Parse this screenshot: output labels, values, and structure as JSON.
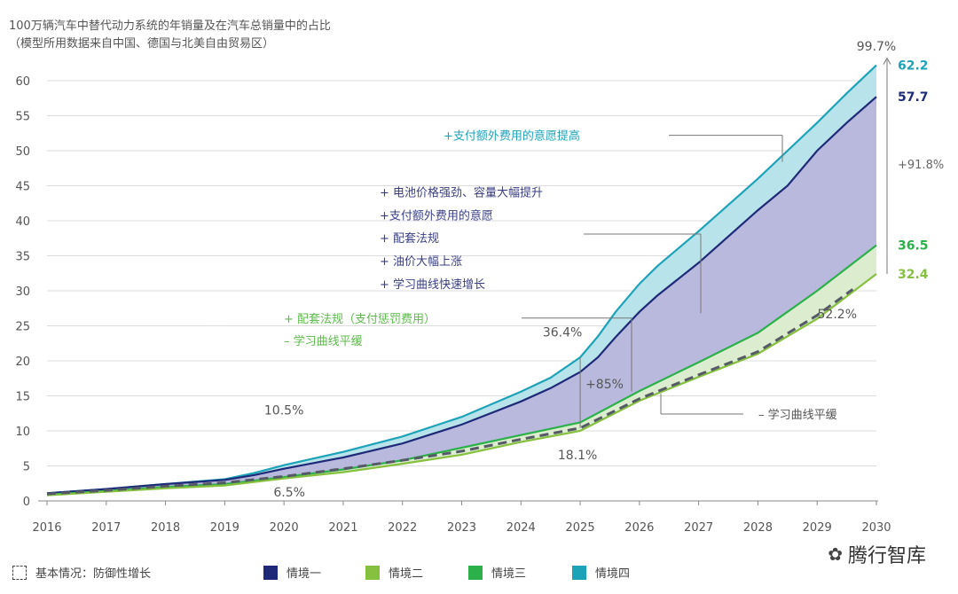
{
  "title_line1": "100万辆汽车中替代动力系统的年销量及在汽车总销量中的占比",
  "title_line2": "（模型所用数据来自中国、德国与北美自由贸易区）",
  "colors": {
    "s1": "#1e2a78",
    "s2": "#86c03f",
    "s3": "#2bb04a",
    "s4": "#1da3b8",
    "fill_purple": "#b9b9de",
    "fill_teal": "#b9e3ea",
    "fill_green": "#dbeccf",
    "base": "#555a66"
  },
  "chart_data": {
    "type": "line",
    "title": "100万辆汽车中替代动力系统的年销量及在汽车总销量中的占比",
    "x_ticks": [
      "2016",
      "2017",
      "2018",
      "2019",
      "2020",
      "2021",
      "2022",
      "2023",
      "2024",
      "2025",
      "2026",
      "2027",
      "2028",
      "2029",
      "2030"
    ],
    "y_ticks": [
      "0",
      "5",
      "10",
      "15",
      "20",
      "25",
      "30",
      "35",
      "40",
      "45",
      "50",
      "55",
      "60"
    ],
    "xlim": [
      2016,
      2030
    ],
    "ylim": [
      0,
      62
    ],
    "series": [
      {
        "name": "情境四",
        "key": "s4",
        "end_label": "62.2",
        "x": [
          2016,
          2017,
          2018,
          2019,
          2019.5,
          2020,
          2021,
          2022,
          2023,
          2024,
          2024.5,
          2025,
          2025.3,
          2025.6,
          2026,
          2026.3,
          2027,
          2028,
          2028.5,
          2029,
          2029.5,
          2030
        ],
        "y": [
          1.1,
          1.7,
          2.4,
          3.1,
          4.0,
          5.1,
          7.0,
          9.2,
          12.0,
          15.6,
          17.6,
          20.5,
          23.5,
          27.0,
          31.0,
          33.5,
          38.5,
          46.0,
          50.0,
          54.0,
          58.2,
          62.2
        ]
      },
      {
        "name": "情境一",
        "key": "s1",
        "end_label": "57.7",
        "x": [
          2016,
          2017,
          2018,
          2019,
          2019.5,
          2020,
          2021,
          2022,
          2023,
          2024,
          2024.5,
          2025,
          2025.3,
          2025.6,
          2026,
          2026.3,
          2027,
          2028,
          2028.5,
          2029,
          2029.5,
          2030
        ],
        "y": [
          1.1,
          1.7,
          2.4,
          3.0,
          3.7,
          4.6,
          6.2,
          8.2,
          10.9,
          14.2,
          16.1,
          18.4,
          20.5,
          23.4,
          27.0,
          29.3,
          34.0,
          41.5,
          45.0,
          50.0,
          54.0,
          57.7
        ]
      },
      {
        "name": "情境三",
        "key": "s3",
        "end_label": "36.5",
        "x": [
          2016,
          2017,
          2018,
          2019,
          2020,
          2021,
          2022,
          2023,
          2024,
          2025,
          2026,
          2027,
          2028,
          2029,
          2030
        ],
        "y": [
          0.9,
          1.4,
          2.0,
          2.4,
          3.4,
          4.5,
          5.8,
          7.6,
          9.4,
          11.2,
          15.7,
          19.8,
          24.0,
          30.0,
          36.5
        ]
      },
      {
        "name": "情境二",
        "key": "s2",
        "end_label": "32.4",
        "x": [
          2016,
          2017,
          2018,
          2019,
          2020,
          2021,
          2022,
          2023,
          2024,
          2025,
          2026,
          2027,
          2028,
          2029,
          2030
        ],
        "y": [
          0.8,
          1.3,
          1.8,
          2.2,
          3.2,
          4.1,
          5.3,
          6.6,
          8.4,
          10.0,
          14.3,
          17.7,
          21.0,
          26.0,
          32.4
        ]
      },
      {
        "name": "基本情况：防御性增长",
        "key": "base",
        "dashed": true,
        "x": [
          2016,
          2017,
          2018,
          2019,
          2020,
          2021,
          2022,
          2023,
          2024,
          2025,
          2026,
          2027,
          2028,
          2029,
          2029.6
        ],
        "y": [
          1.0,
          1.5,
          2.1,
          2.6,
          3.5,
          4.6,
          5.8,
          7.1,
          8.8,
          10.4,
          14.6,
          18.0,
          21.3,
          26.5,
          30.2
        ]
      }
    ],
    "annotations": {
      "pct_2020_top": "10.5%",
      "pct_2020_bottom": "6.5%",
      "pct_2025_top": "36.4%",
      "pct_2025_bottom": "18.1%",
      "pct_2025_change": "+85%",
      "pct_2030_top": "99.7%",
      "pct_2030_bottom": "52.2%",
      "pct_2030_change": "+91.8%",
      "s4_label": "+支付额外费用的意愿提高",
      "s1_labels": [
        "+  电池价格强劲、容量大幅提升",
        "+支付额外费用的意愿",
        "+  配套法规",
        "+  油价大幅上涨",
        "+  学习曲线快速增长"
      ],
      "s3_labels": [
        "+ 配套法规（支付惩罚费用）",
        "– 学习曲线平缓"
      ],
      "s2_label": "–  学习曲线平缓"
    }
  },
  "legend": {
    "base": "基本情况：防御性增长",
    "s1": "情境一",
    "s2": "情境二",
    "s3": "情境三",
    "s4": "情境四"
  },
  "watermark": "腾行智库"
}
